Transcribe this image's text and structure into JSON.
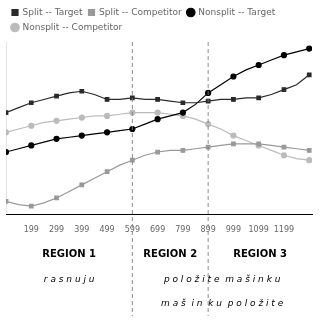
{
  "chart_data": {
    "type": "line",
    "x": [
      99,
      149,
      199,
      249,
      299,
      349,
      399,
      449,
      499,
      549,
      599,
      649,
      699,
      749,
      799,
      849,
      899,
      949,
      999,
      1049,
      1099,
      1149,
      1199,
      1249,
      1299
    ],
    "series": [
      {
        "name": "Split -- Target",
        "color": "#2a2a2a",
        "marker": "square",
        "values": [
          0.62,
          0.65,
          0.68,
          0.7,
          0.72,
          0.74,
          0.75,
          0.73,
          0.7,
          0.7,
          0.71,
          0.7,
          0.7,
          0.69,
          0.68,
          0.68,
          0.69,
          0.7,
          0.7,
          0.71,
          0.71,
          0.73,
          0.76,
          0.79,
          0.85
        ]
      },
      {
        "name": "Split -- Competitor",
        "color": "#999999",
        "marker": "square",
        "values": [
          0.08,
          0.06,
          0.05,
          0.07,
          0.1,
          0.14,
          0.18,
          0.22,
          0.26,
          0.3,
          0.33,
          0.36,
          0.38,
          0.39,
          0.39,
          0.4,
          0.41,
          0.42,
          0.43,
          0.43,
          0.43,
          0.42,
          0.41,
          0.4,
          0.39
        ]
      },
      {
        "name": "Nonsplit -- Target",
        "color": "#000000",
        "marker": "circle",
        "values": [
          0.38,
          0.4,
          0.42,
          0.44,
          0.46,
          0.47,
          0.48,
          0.49,
          0.5,
          0.51,
          0.52,
          0.55,
          0.58,
          0.6,
          0.62,
          0.67,
          0.74,
          0.79,
          0.84,
          0.88,
          0.91,
          0.94,
          0.97,
          0.99,
          1.01
        ]
      },
      {
        "name": "Nonsplit -- Competitor",
        "color": "#bbbbbb",
        "marker": "circle",
        "values": [
          0.5,
          0.52,
          0.54,
          0.56,
          0.57,
          0.58,
          0.59,
          0.6,
          0.6,
          0.61,
          0.62,
          0.62,
          0.62,
          0.61,
          0.6,
          0.58,
          0.55,
          0.52,
          0.48,
          0.45,
          0.42,
          0.39,
          0.36,
          0.34,
          0.33
        ]
      }
    ],
    "xlim": [
      99,
      1310
    ],
    "xticks": [
      199,
      299,
      399,
      499,
      599,
      699,
      799,
      899,
      999,
      1099,
      1199
    ],
    "ylim": [
      0.0,
      1.05
    ],
    "tick_labels": "x",
    "grid": false,
    "legend": "upper left",
    "vlines": [
      599,
      899
    ],
    "region_labels": [
      "REGION 1",
      "REGION 2",
      "REGION 3"
    ],
    "annotations": [
      "r a s n u j u",
      "p o l o ž i t e  m a š i n k u",
      "m a š  i n  k u  p o l o ž i t e"
    ]
  }
}
